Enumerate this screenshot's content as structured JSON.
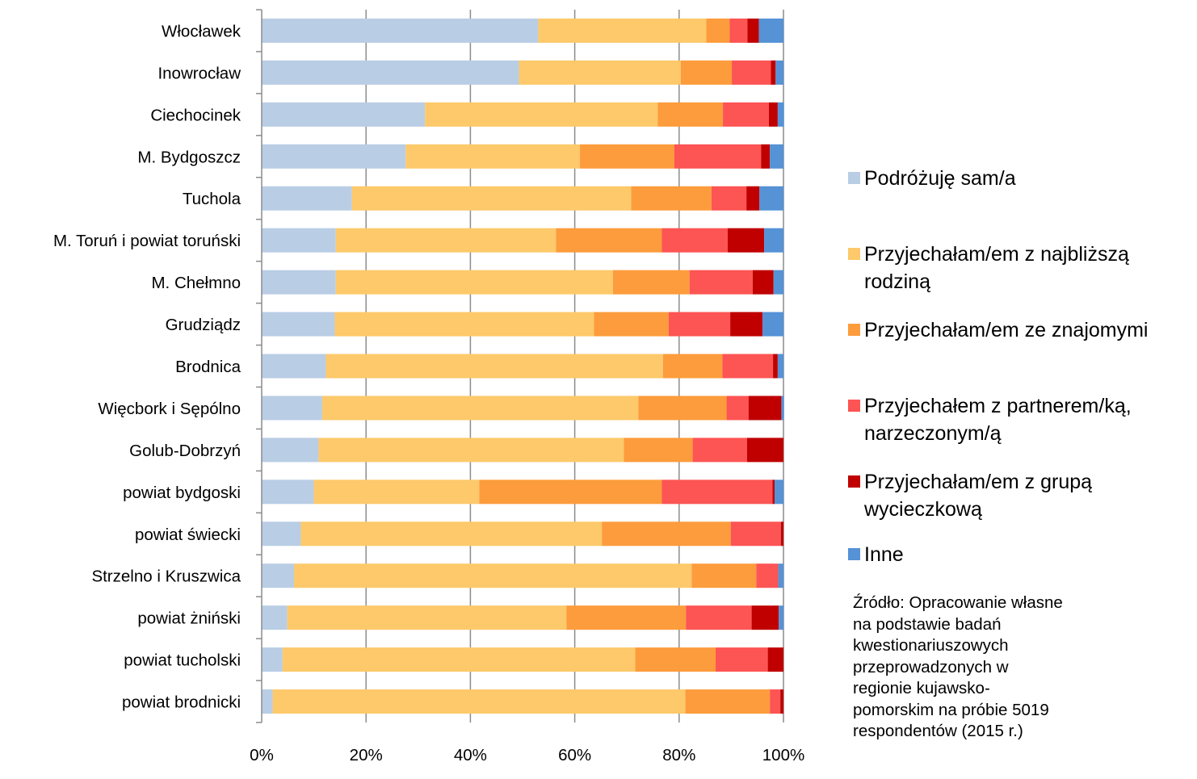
{
  "chart_data": {
    "type": "bar",
    "orientation": "horizontal",
    "stacked": "percent",
    "categories": [
      "Włocławek",
      "Inowrocław",
      "Ciechocinek",
      "M. Bydgoszcz",
      "Tuchola",
      "M. Toruń i powiat toruński",
      "M. Chełmno",
      "Grudziądz",
      "Brodnica",
      "Więcbork i Sępólno",
      "Golub-Dobrzyń",
      "powiat bydgoski",
      "powiat świecki",
      "Strzelno i Kruszwica",
      "powiat żniński",
      "powiat tucholski",
      "powiat brodnicki"
    ],
    "series": [
      {
        "name": "Podróżuję sam/a",
        "color": "#b9cde5",
        "values": [
          53.0,
          49.3,
          31.3,
          27.6,
          17.3,
          14.2,
          14.2,
          14.0,
          12.3,
          11.6,
          10.9,
          10.0,
          7.5,
          6.2,
          4.9,
          4.0,
          2.1
        ]
      },
      {
        "name": "Przyjechałam/em z najbliższą\nrodziną",
        "color": "#fdc96a",
        "values": [
          32.2,
          31.0,
          44.6,
          33.4,
          53.5,
          42.2,
          53.1,
          49.7,
          64.6,
          60.6,
          58.5,
          31.7,
          57.7,
          76.2,
          53.5,
          67.6,
          79.1
        ]
      },
      {
        "name": "Przyjechałam/em ze znajomymi",
        "color": "#fd9c3c",
        "values": [
          4.5,
          9.8,
          12.5,
          18.1,
          15.4,
          20.3,
          14.7,
          14.3,
          11.4,
          16.9,
          13.2,
          35.0,
          24.7,
          12.4,
          22.9,
          15.4,
          16.2
        ]
      },
      {
        "name": "Przyjechałem z partnerem/ką,\nnarzeczonym/ą",
        "color": "#fd5454",
        "values": [
          3.4,
          7.5,
          8.8,
          16.6,
          6.7,
          12.6,
          12.1,
          11.8,
          9.7,
          4.2,
          10.4,
          21.2,
          9.6,
          4.2,
          12.6,
          10.0,
          2.0
        ]
      },
      {
        "name": "Przyjechałam/em z grupą\nwycieczkową",
        "color": "#c00000",
        "values": [
          2.2,
          0.9,
          1.7,
          1.7,
          2.5,
          7.0,
          4.0,
          6.2,
          0.9,
          6.3,
          7.0,
          0.4,
          0.5,
          0.0,
          5.2,
          3.0,
          0.6
        ]
      },
      {
        "name": "Inne",
        "color": "#5592d6",
        "values": [
          4.7,
          1.5,
          1.2,
          2.6,
          4.6,
          3.7,
          1.9,
          4.0,
          1.1,
          0.5,
          0.0,
          1.7,
          0.0,
          1.0,
          0.9,
          0.0,
          0.0
        ]
      }
    ],
    "x_ticks": [
      "0%",
      "20%",
      "40%",
      "60%",
      "80%",
      "100%"
    ],
    "xlim": [
      0,
      100
    ],
    "grid": "vertical",
    "legend_position": "right",
    "title": "",
    "xlabel": "",
    "ylabel": ""
  },
  "source_note": "Źródło: Opracowanie własne\nna podstawie badań\nkwestionariuszowych\nprzeprowadzonych w\nregionie kujawsko-\npomorskim na próbie 5019\nrespondentów (2015 r.)"
}
